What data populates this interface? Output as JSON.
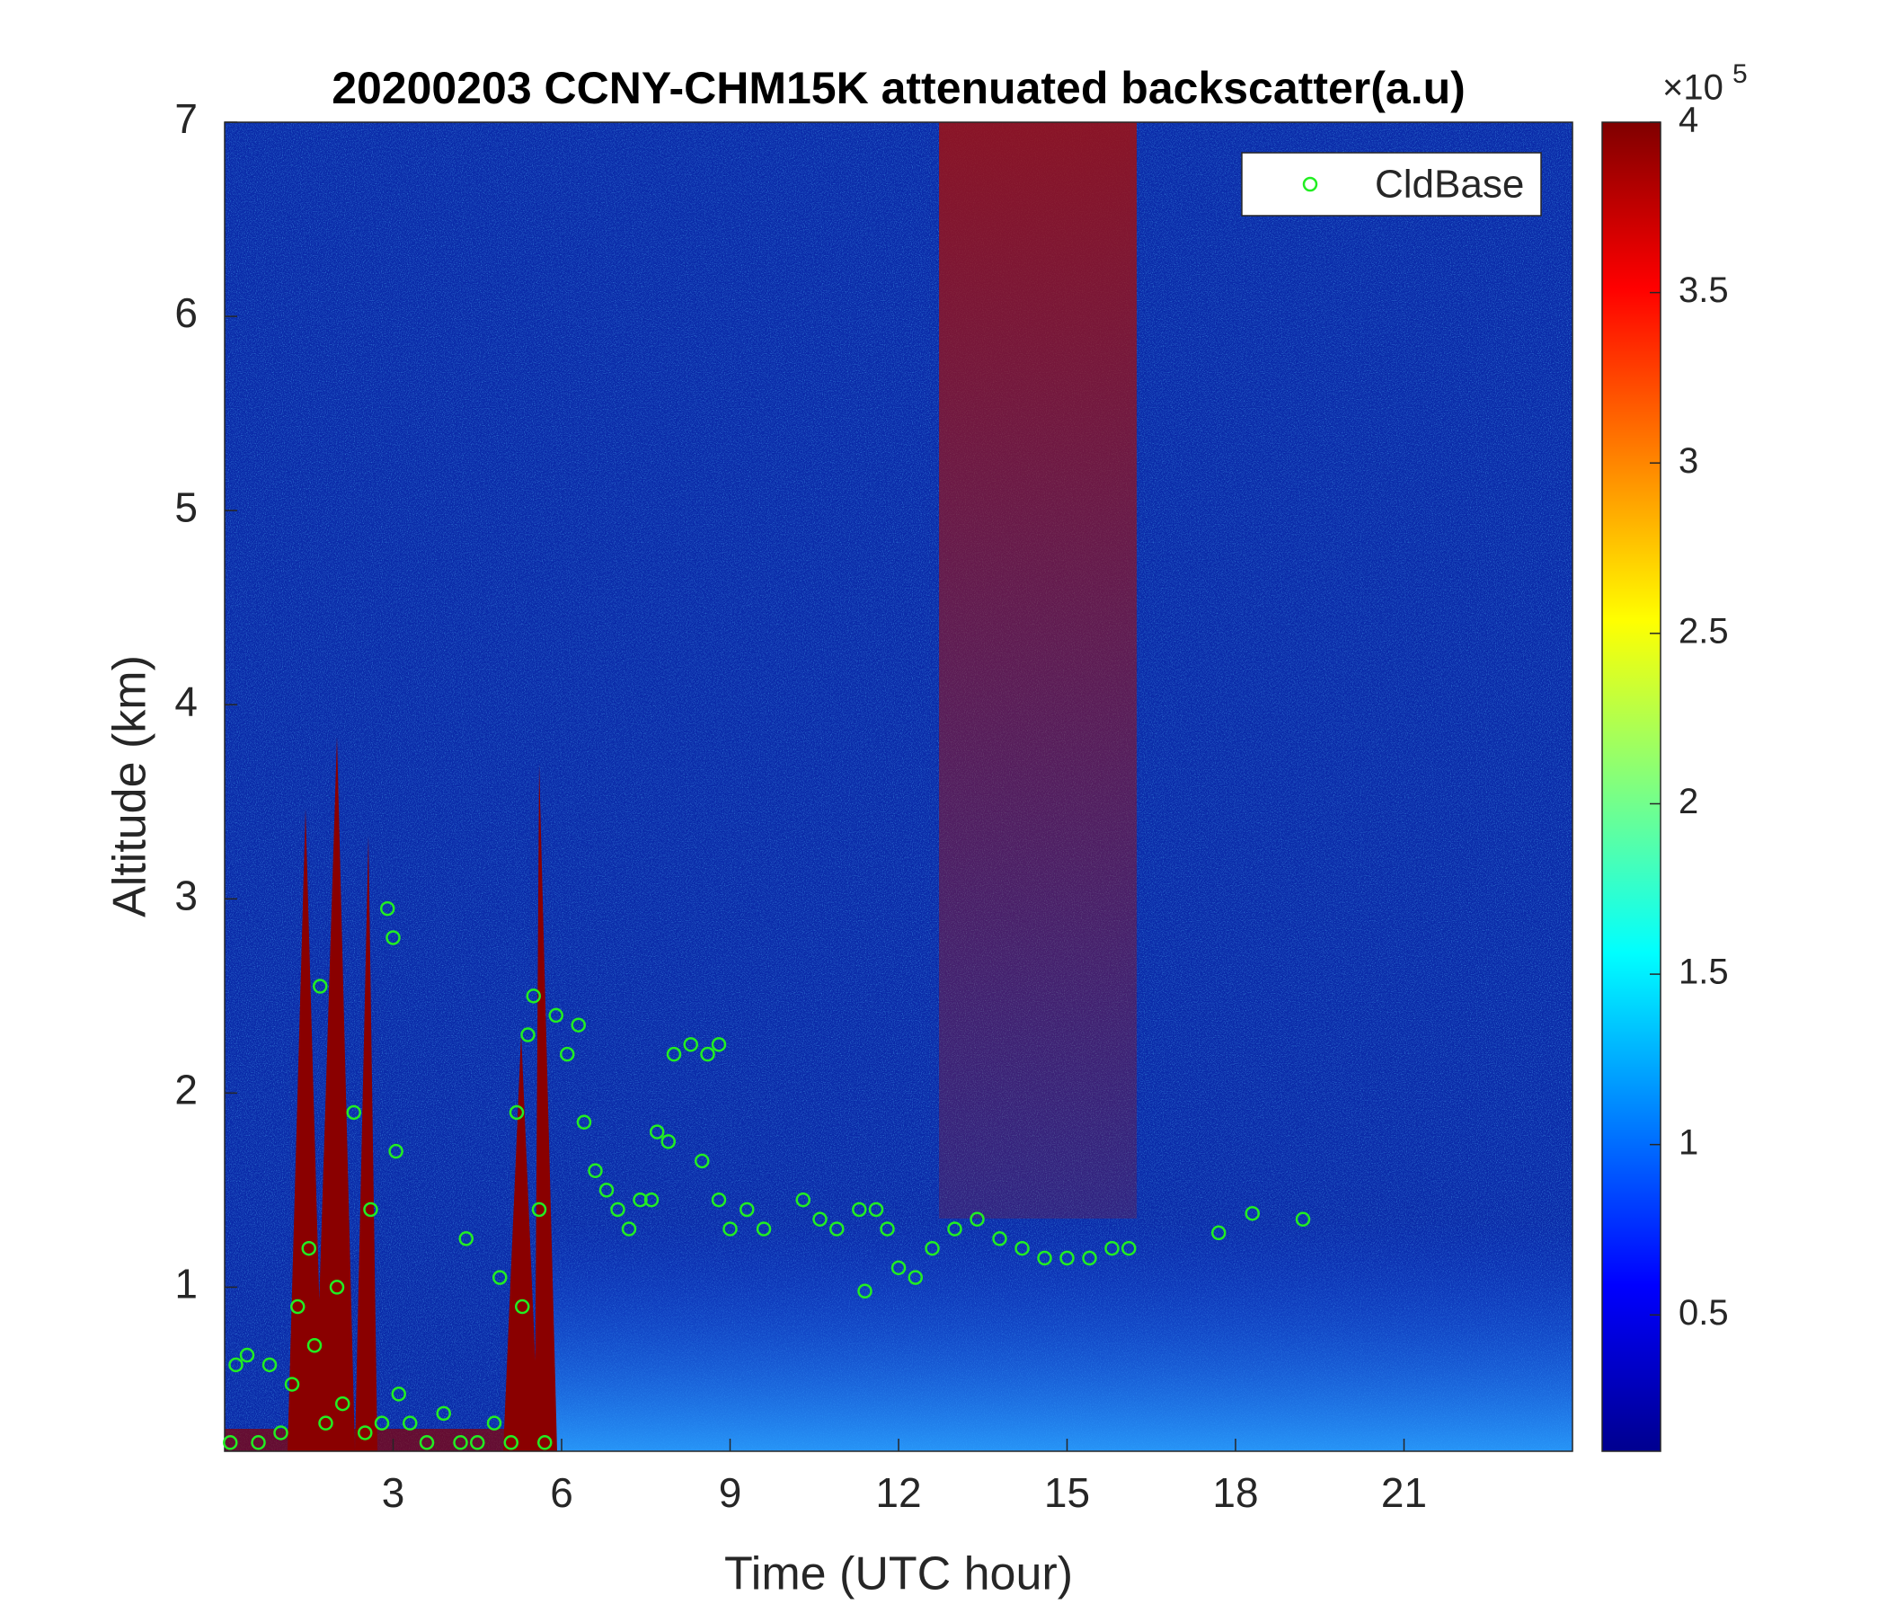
{
  "chart_data": {
    "type": "scatter",
    "title": "20200203 CCNY-CHM15K attenuated backscatter(a.u)",
    "x_label": "Time (UTC hour)",
    "y_label": "Altitude (km)",
    "xlim": [
      0,
      24
    ],
    "xticks": [
      3,
      6,
      9,
      12,
      15,
      18,
      21
    ],
    "ylim": [
      0.155,
      7
    ],
    "yticks": [
      1,
      2,
      3,
      4,
      5,
      6,
      7
    ],
    "legend_position": "upper right",
    "series": [
      {
        "name": "CldBase",
        "color": "#22ee22",
        "x": [
          0.1,
          0.2,
          0.4,
          0.6,
          0.8,
          1.0,
          1.2,
          1.3,
          1.5,
          1.6,
          1.7,
          1.8,
          2.0,
          2.1,
          2.3,
          2.5,
          2.6,
          2.8,
          2.9,
          3.0,
          3.05,
          3.1,
          3.3,
          3.6,
          3.9,
          4.2,
          4.3,
          4.5,
          4.8,
          4.9,
          5.1,
          5.2,
          5.3,
          5.4,
          5.5,
          5.6,
          5.7,
          5.9,
          6.1,
          6.3,
          6.4,
          6.6,
          6.8,
          7.0,
          7.2,
          7.4,
          7.6,
          7.7,
          7.9,
          8.0,
          8.3,
          8.6,
          8.8,
          8.5,
          8.8,
          9.0,
          9.3,
          9.6,
          10.3,
          10.6,
          10.9,
          11.3,
          11.4,
          11.6,
          11.8,
          12.0,
          12.3,
          12.6,
          13.0,
          13.4,
          13.8,
          14.2,
          14.6,
          15.0,
          15.4,
          15.8,
          16.1,
          17.7,
          18.3,
          19.2
        ],
        "values": [
          0.2,
          0.6,
          0.65,
          0.2,
          0.6,
          0.25,
          0.5,
          0.9,
          1.2,
          0.7,
          2.55,
          0.3,
          1.0,
          0.4,
          1.9,
          0.25,
          1.4,
          0.3,
          2.95,
          2.8,
          1.7,
          0.45,
          0.3,
          0.2,
          0.35,
          0.2,
          1.25,
          0.2,
          0.3,
          1.05,
          0.2,
          1.9,
          0.9,
          2.3,
          2.5,
          1.4,
          0.2,
          2.4,
          2.2,
          2.35,
          1.85,
          1.6,
          1.5,
          1.4,
          1.3,
          1.45,
          1.45,
          1.8,
          1.75,
          2.2,
          2.25,
          2.2,
          2.25,
          1.65,
          1.45,
          1.3,
          1.4,
          1.3,
          1.45,
          1.35,
          1.3,
          1.4,
          0.98,
          1.4,
          1.3,
          1.1,
          1.05,
          1.2,
          1.3,
          1.35,
          1.25,
          1.2,
          1.15,
          1.15,
          1.15,
          1.2,
          1.2,
          1.28,
          1.38,
          1.35
        ]
      }
    ],
    "colorbar": {
      "lim": [
        0.1,
        4
      ],
      "ticks": [
        0.5,
        1,
        1.5,
        2,
        2.5,
        3,
        3.5,
        4
      ],
      "multiplier": "×10",
      "exponent": "5"
    }
  }
}
